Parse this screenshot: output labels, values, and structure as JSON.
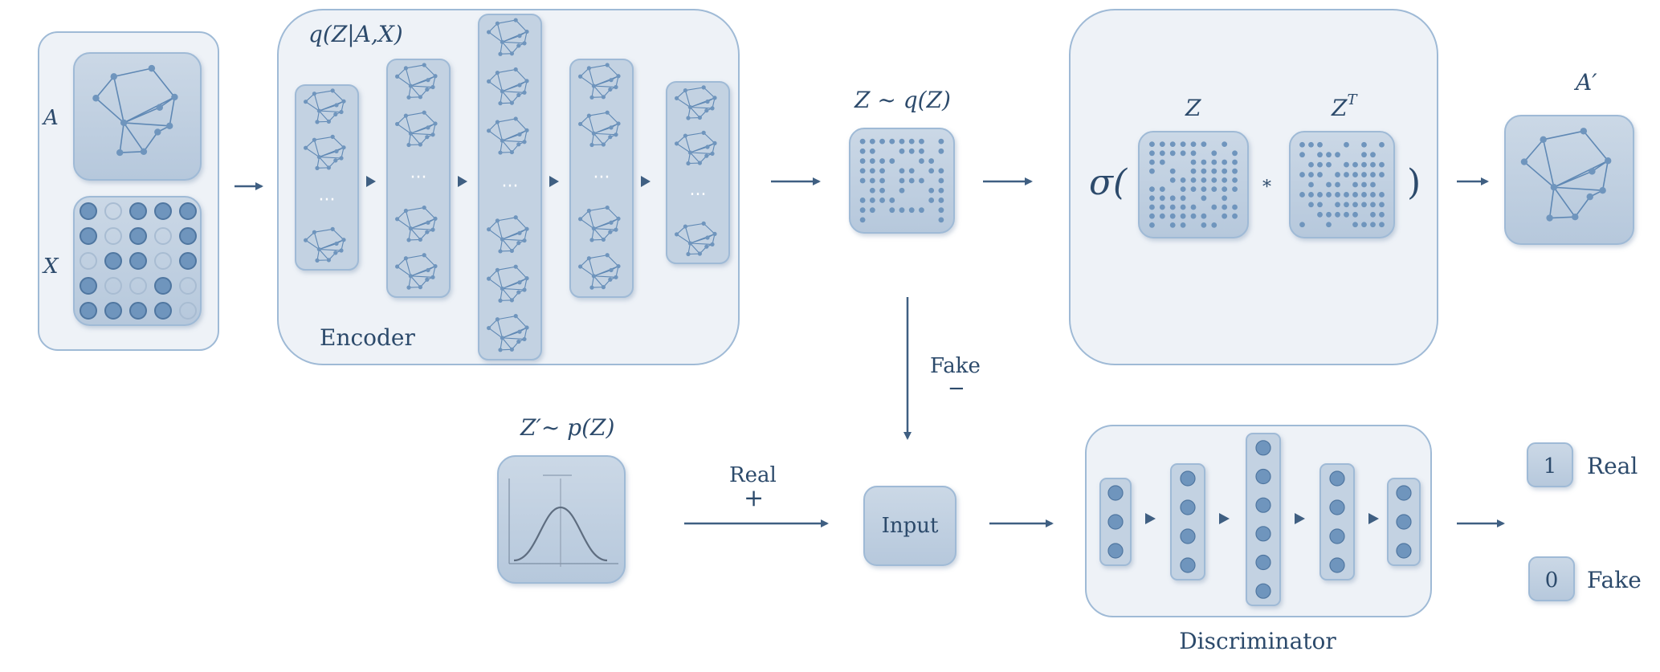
{
  "input_labels": {
    "a": "A",
    "x": "X"
  },
  "encoder": {
    "title": "q(Z|A,X)",
    "label": "Encoder",
    "ellipsis": "···"
  },
  "latent": {
    "label": "Z ~ q(Z)"
  },
  "decoder": {
    "sigma_open": "σ(",
    "close": ")",
    "z_label": "Z",
    "zt_base": "Z",
    "zt_sup": "T",
    "mult": "*"
  },
  "output": {
    "label": "A′"
  },
  "fake_arrow": {
    "label": "Fake",
    "sign": "−"
  },
  "prior": {
    "label": "Z′~ p(Z)"
  },
  "real_arrow": {
    "label": "Real",
    "sign": "+"
  },
  "input_box": {
    "label": "Input"
  },
  "discriminator": {
    "label": "Discriminator"
  },
  "outputs": [
    {
      "value": "1",
      "label": "Real"
    },
    {
      "value": "0",
      "label": "Fake"
    }
  ],
  "colors": {
    "panel_fill": "#eef2f7",
    "panel_stroke": "#9fbad6",
    "node_fill": "#6f95bd",
    "box_fill": "#c5d3e3",
    "text": "#2c4a6b",
    "arrow": "#3f5f82"
  }
}
